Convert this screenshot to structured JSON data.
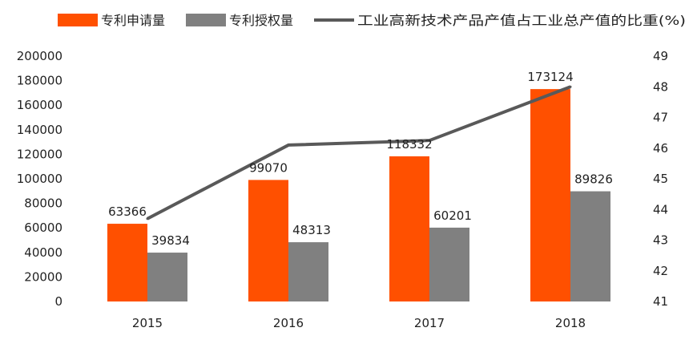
{
  "chart_data": {
    "type": "bar",
    "categories": [
      "2015",
      "2016",
      "2017",
      "2018"
    ],
    "series": [
      {
        "name": "专利申请量",
        "kind": "bar",
        "axis": "left",
        "color": "#ff5000",
        "values": [
          63366,
          99070,
          118332,
          173124
        ]
      },
      {
        "name": "专利授权量",
        "kind": "bar",
        "axis": "left",
        "color": "#808080",
        "values": [
          39834,
          48313,
          60201,
          89826
        ]
      },
      {
        "name": "工业高新技术产品产值占工业总产值的比重(%)",
        "kind": "line",
        "axis": "right",
        "color": "#595959",
        "values": [
          43.7,
          46.1,
          46.25,
          48.0
        ]
      }
    ],
    "left_axis": {
      "min": 0,
      "max": 200000,
      "step": 20000,
      "ticks": [
        "0",
        "20000",
        "40000",
        "60000",
        "80000",
        "100000",
        "120000",
        "140000",
        "160000",
        "180000",
        "200000"
      ]
    },
    "right_axis": {
      "min": 41,
      "max": 49,
      "step": 1,
      "ticks": [
        "41",
        "42",
        "43",
        "44",
        "45",
        "46",
        "47",
        "48",
        "49"
      ]
    },
    "bar_data_labels": [
      [
        "63366",
        "99070",
        "118332",
        "173124"
      ],
      [
        "39834",
        "48313",
        "60201",
        "89826"
      ]
    ],
    "legend_position": "top",
    "grid": false
  }
}
